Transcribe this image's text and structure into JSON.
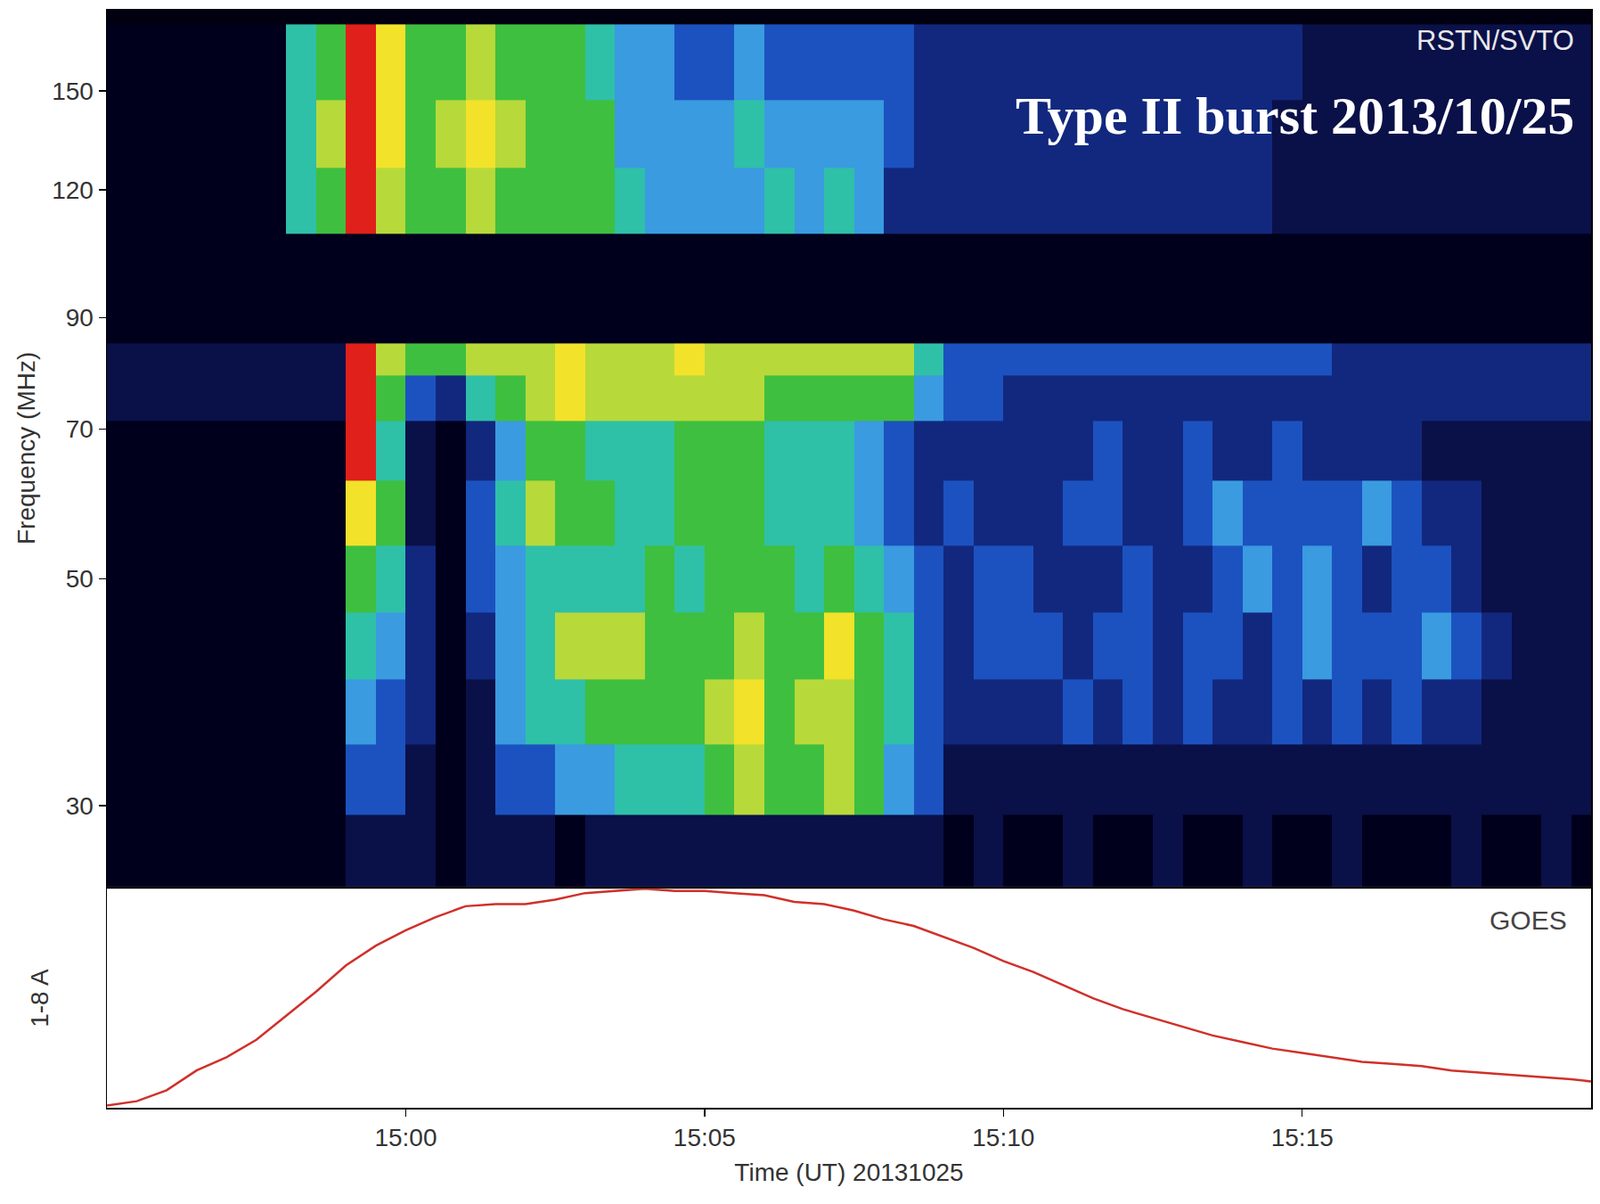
{
  "chart_data": [
    {
      "type": "heatmap",
      "title": "Type II burst 2013/10/25",
      "annotations": [
        "RSTN/SVTO"
      ],
      "y_label": "Frequency (MHz)",
      "log": "y",
      "tick_labels": "y",
      "xlim": [
        "2013-10-25 14:55:00",
        "2013-10-25 15:19:50"
      ],
      "ylim": [
        25,
        180
      ],
      "yticks": [
        30,
        50,
        70,
        90,
        120,
        150
      ],
      "zlim": [
        0,
        10
      ],
      "x": [
        "2013-10-25 14:55:15",
        "2013-10-25 14:55:45",
        "2013-10-25 14:56:15",
        "2013-10-25 14:56:45",
        "2013-10-25 14:57:15",
        "2013-10-25 14:57:45",
        "2013-10-25 14:58:15",
        "2013-10-25 14:58:45",
        "2013-10-25 14:59:15",
        "2013-10-25 14:59:45",
        "2013-10-25 15:00:15",
        "2013-10-25 15:00:45",
        "2013-10-25 15:01:15",
        "2013-10-25 15:01:45",
        "2013-10-25 15:02:15",
        "2013-10-25 15:02:45",
        "2013-10-25 15:03:15",
        "2013-10-25 15:03:45",
        "2013-10-25 15:04:15",
        "2013-10-25 15:04:45",
        "2013-10-25 15:05:15",
        "2013-10-25 15:05:45",
        "2013-10-25 15:06:15",
        "2013-10-25 15:06:45",
        "2013-10-25 15:07:15",
        "2013-10-25 15:07:45",
        "2013-10-25 15:08:15",
        "2013-10-25 15:08:45",
        "2013-10-25 15:09:15",
        "2013-10-25 15:09:45",
        "2013-10-25 15:10:15",
        "2013-10-25 15:10:45",
        "2013-10-25 15:11:15",
        "2013-10-25 15:11:45",
        "2013-10-25 15:12:15",
        "2013-10-25 15:12:45",
        "2013-10-25 15:13:15",
        "2013-10-25 15:13:45",
        "2013-10-25 15:14:15",
        "2013-10-25 15:14:45",
        "2013-10-25 15:15:15",
        "2013-10-25 15:15:45",
        "2013-10-25 15:16:15",
        "2013-10-25 15:16:45",
        "2013-10-25 15:17:15",
        "2013-10-25 15:17:45",
        "2013-10-25 15:18:15",
        "2013-10-25 15:18:45",
        "2013-10-25 15:19:15",
        "2013-10-25 15:19:45"
      ],
      "y": [
        27,
        32,
        37,
        43,
        50,
        58,
        67,
        76,
        82,
        88,
        100,
        118,
        135,
        160
      ],
      "z": [
        [
          1,
          1,
          1,
          1,
          1,
          1,
          1,
          1,
          2,
          2,
          2,
          1,
          2,
          2,
          2,
          1,
          2,
          2,
          2,
          2,
          2,
          2,
          2,
          2,
          2,
          2,
          2,
          2,
          1,
          2,
          1,
          1,
          2,
          1,
          1,
          2,
          1,
          1,
          2,
          1,
          1,
          2,
          1,
          1,
          1,
          2,
          1,
          1,
          2,
          1
        ],
        [
          1,
          1,
          1,
          1,
          1,
          1,
          1,
          1,
          4,
          4,
          2,
          1,
          2,
          4,
          4,
          5,
          5,
          6,
          6,
          6,
          7,
          8,
          7,
          7,
          8,
          7,
          5,
          4,
          2,
          2,
          2,
          2,
          2,
          2,
          2,
          2,
          2,
          2,
          2,
          2,
          2,
          2,
          2,
          2,
          2,
          2,
          2,
          2,
          2,
          2
        ],
        [
          1,
          1,
          1,
          1,
          1,
          1,
          1,
          1,
          5,
          4,
          3,
          1,
          2,
          5,
          6,
          6,
          7,
          7,
          7,
          7,
          8,
          9,
          7,
          8,
          8,
          7,
          6,
          4,
          3,
          3,
          3,
          3,
          4,
          3,
          4,
          3,
          4,
          3,
          3,
          4,
          3,
          4,
          3,
          4,
          3,
          3,
          2,
          2,
          2,
          2
        ],
        [
          1,
          1,
          1,
          1,
          1,
          1,
          1,
          1,
          6,
          5,
          3,
          1,
          3,
          5,
          6,
          8,
          8,
          8,
          7,
          7,
          7,
          8,
          7,
          7,
          9,
          7,
          6,
          4,
          3,
          4,
          4,
          4,
          3,
          4,
          4,
          3,
          4,
          4,
          3,
          4,
          5,
          4,
          4,
          4,
          5,
          4,
          3,
          2,
          2,
          2
        ],
        [
          1,
          1,
          1,
          1,
          1,
          1,
          1,
          1,
          7,
          6,
          3,
          1,
          4,
          5,
          6,
          6,
          6,
          6,
          7,
          6,
          7,
          7,
          7,
          6,
          7,
          6,
          5,
          4,
          3,
          4,
          4,
          3,
          3,
          3,
          4,
          3,
          3,
          4,
          5,
          4,
          5,
          4,
          3,
          4,
          4,
          3,
          2,
          2,
          2,
          2
        ],
        [
          1,
          1,
          1,
          1,
          1,
          1,
          1,
          1,
          9,
          7,
          2,
          1,
          4,
          6,
          8,
          7,
          7,
          6,
          6,
          7,
          7,
          7,
          6,
          6,
          6,
          5,
          4,
          3,
          4,
          3,
          3,
          3,
          4,
          4,
          3,
          3,
          4,
          5,
          4,
          4,
          4,
          4,
          5,
          4,
          3,
          3,
          2,
          2,
          2,
          2
        ],
        [
          1,
          1,
          1,
          1,
          1,
          1,
          1,
          1,
          10,
          6,
          2,
          1,
          3,
          5,
          7,
          7,
          6,
          6,
          6,
          7,
          7,
          7,
          6,
          6,
          6,
          5,
          4,
          3,
          3,
          3,
          3,
          3,
          3,
          4,
          3,
          3,
          4,
          3,
          3,
          4,
          3,
          3,
          3,
          3,
          2,
          2,
          2,
          2,
          2,
          2
        ],
        [
          2,
          2,
          2,
          2,
          2,
          2,
          2,
          2,
          10,
          7,
          4,
          3,
          6,
          7,
          8,
          9,
          8,
          8,
          8,
          8,
          8,
          8,
          7,
          7,
          7,
          7,
          7,
          5,
          4,
          4,
          3,
          3,
          3,
          3,
          3,
          3,
          3,
          3,
          3,
          3,
          3,
          3,
          3,
          3,
          3,
          3,
          3,
          3,
          3,
          3
        ],
        [
          2,
          2,
          2,
          2,
          2,
          2,
          2,
          2,
          10,
          8,
          7,
          7,
          8,
          8,
          8,
          9,
          8,
          8,
          8,
          9,
          8,
          8,
          8,
          8,
          8,
          8,
          8,
          6,
          4,
          4,
          4,
          4,
          4,
          4,
          4,
          4,
          4,
          4,
          4,
          4,
          4,
          3,
          3,
          3,
          3,
          3,
          3,
          3,
          3,
          3
        ],
        [
          1,
          1,
          1,
          1,
          1,
          1,
          1,
          1,
          1,
          1,
          1,
          1,
          1,
          1,
          1,
          1,
          1,
          1,
          1,
          1,
          1,
          1,
          1,
          1,
          1,
          1,
          1,
          1,
          1,
          1,
          1,
          1,
          1,
          1,
          1,
          1,
          1,
          1,
          1,
          1,
          1,
          1,
          1,
          1,
          1,
          1,
          1,
          1,
          1,
          1
        ],
        [
          1,
          1,
          1,
          1,
          1,
          1,
          1,
          1,
          1,
          1,
          1,
          1,
          1,
          1,
          1,
          1,
          1,
          1,
          1,
          1,
          1,
          1,
          1,
          1,
          1,
          1,
          1,
          1,
          1,
          1,
          1,
          1,
          1,
          1,
          1,
          1,
          1,
          1,
          1,
          1,
          1,
          1,
          1,
          1,
          1,
          1,
          1,
          1,
          1,
          1
        ],
        [
          1,
          1,
          1,
          1,
          1,
          1,
          6,
          7,
          10,
          8,
          7,
          7,
          8,
          7,
          7,
          7,
          7,
          6,
          5,
          5,
          5,
          5,
          6,
          5,
          6,
          5,
          3,
          3,
          3,
          3,
          3,
          3,
          3,
          3,
          3,
          3,
          3,
          3,
          3,
          2,
          2,
          2,
          2,
          2,
          2,
          2,
          2,
          2,
          2,
          2
        ],
        [
          1,
          1,
          1,
          1,
          1,
          1,
          6,
          8,
          10,
          9,
          7,
          8,
          9,
          8,
          7,
          7,
          7,
          5,
          5,
          5,
          5,
          6,
          5,
          5,
          5,
          5,
          4,
          3,
          3,
          3,
          3,
          3,
          3,
          3,
          3,
          3,
          3,
          3,
          3,
          2,
          2,
          2,
          2,
          2,
          2,
          2,
          2,
          2,
          2,
          2
        ],
        [
          1,
          1,
          1,
          1,
          1,
          1,
          6,
          7,
          10,
          9,
          7,
          7,
          8,
          7,
          7,
          7,
          6,
          5,
          5,
          4,
          4,
          5,
          4,
          4,
          4,
          4,
          4,
          3,
          3,
          3,
          3,
          3,
          3,
          3,
          3,
          3,
          3,
          3,
          3,
          3,
          2,
          2,
          2,
          2,
          2,
          2,
          2,
          2,
          2,
          2
        ]
      ]
    },
    {
      "type": "line",
      "annotations": [
        "GOES"
      ],
      "x_label": "Time (UT) 20131025",
      "y_label": "1-8 A",
      "tick_labels": "x",
      "color": "#d0302a",
      "xlim": [
        "2013-10-25 14:55:00",
        "2013-10-25 15:19:50"
      ],
      "ylim": [
        0,
        1
      ],
      "xticks": [
        {
          "value": "2013-10-25 15:00:00",
          "label": "15:00"
        },
        {
          "value": "2013-10-25 15:05:00",
          "label": "15:05"
        },
        {
          "value": "2013-10-25 15:10:00",
          "label": "15:10"
        },
        {
          "value": "2013-10-25 15:15:00",
          "label": "15:15"
        }
      ],
      "x": [
        "2013-10-25 14:55:00",
        "2013-10-25 14:55:30",
        "2013-10-25 14:56:00",
        "2013-10-25 14:56:30",
        "2013-10-25 14:57:00",
        "2013-10-25 14:57:30",
        "2013-10-25 14:58:00",
        "2013-10-25 14:58:30",
        "2013-10-25 14:59:00",
        "2013-10-25 14:59:30",
        "2013-10-25 15:00:00",
        "2013-10-25 15:00:30",
        "2013-10-25 15:01:00",
        "2013-10-25 15:01:30",
        "2013-10-25 15:02:00",
        "2013-10-25 15:02:30",
        "2013-10-25 15:03:00",
        "2013-10-25 15:03:30",
        "2013-10-25 15:04:00",
        "2013-10-25 15:04:30",
        "2013-10-25 15:05:00",
        "2013-10-25 15:05:30",
        "2013-10-25 15:06:00",
        "2013-10-25 15:06:30",
        "2013-10-25 15:07:00",
        "2013-10-25 15:07:30",
        "2013-10-25 15:08:00",
        "2013-10-25 15:08:30",
        "2013-10-25 15:09:00",
        "2013-10-25 15:09:30",
        "2013-10-25 15:10:00",
        "2013-10-25 15:10:30",
        "2013-10-25 15:11:00",
        "2013-10-25 15:11:30",
        "2013-10-25 15:12:00",
        "2013-10-25 15:12:30",
        "2013-10-25 15:13:00",
        "2013-10-25 15:13:30",
        "2013-10-25 15:14:00",
        "2013-10-25 15:14:30",
        "2013-10-25 15:15:00",
        "2013-10-25 15:15:30",
        "2013-10-25 15:16:00",
        "2013-10-25 15:16:30",
        "2013-10-25 15:17:00",
        "2013-10-25 15:17:30",
        "2013-10-25 15:18:00",
        "2013-10-25 15:18:30",
        "2013-10-25 15:19:00",
        "2013-10-25 15:19:30",
        "2013-10-25 15:19:50"
      ],
      "values": [
        0.01,
        0.03,
        0.08,
        0.17,
        0.23,
        0.31,
        0.42,
        0.53,
        0.65,
        0.74,
        0.81,
        0.87,
        0.92,
        0.93,
        0.93,
        0.95,
        0.98,
        0.99,
        1.0,
        0.99,
        0.99,
        0.98,
        0.97,
        0.94,
        0.93,
        0.9,
        0.86,
        0.83,
        0.78,
        0.73,
        0.67,
        0.62,
        0.56,
        0.5,
        0.45,
        0.41,
        0.37,
        0.33,
        0.3,
        0.27,
        0.25,
        0.23,
        0.21,
        0.2,
        0.19,
        0.17,
        0.16,
        0.15,
        0.14,
        0.13,
        0.12
      ]
    }
  ]
}
